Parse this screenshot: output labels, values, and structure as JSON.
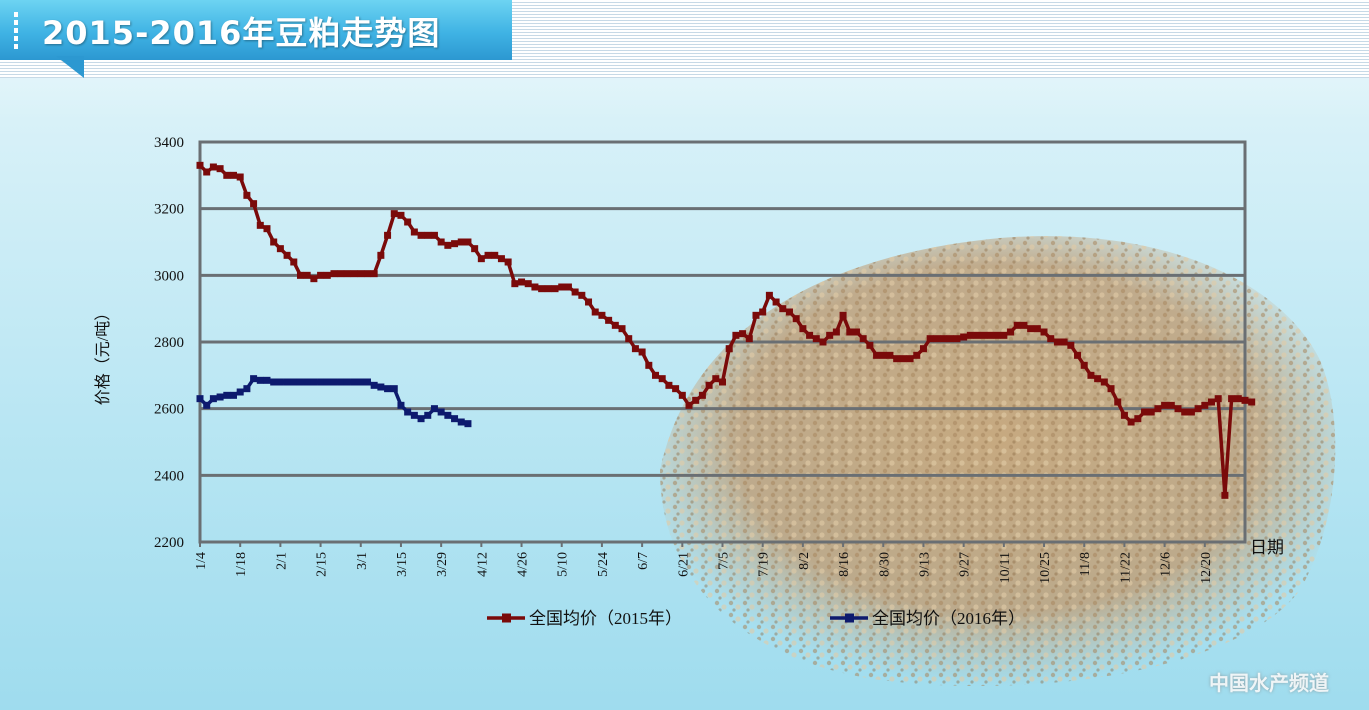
{
  "header": {
    "title": "2015-2016年豆粕走势图"
  },
  "watermark": {
    "text": "中国水产频道"
  },
  "chart_data": {
    "type": "line",
    "title": "2015-2016年豆粕走势图",
    "ylabel": "价格（元/吨）",
    "xlabel": "日期",
    "ylim": [
      2200,
      3400
    ],
    "yticks": [
      2200,
      2400,
      2600,
      2800,
      3000,
      3200,
      3400
    ],
    "x_ticks": [
      "1/4",
      "1/18",
      "2/1",
      "2/15",
      "3/1",
      "3/15",
      "3/29",
      "4/12",
      "4/26",
      "5/10",
      "5/24",
      "6/7",
      "6/21",
      "7/5",
      "7/19",
      "8/2",
      "8/16",
      "8/30",
      "9/13",
      "9/27",
      "10/11",
      "10/25",
      "11/8",
      "11/22",
      "12/6",
      "12/20"
    ],
    "grid": true,
    "legend_position": "bottom",
    "colors": {
      "2015": "#7a0a0a",
      "2016": "#0d1a6e"
    },
    "series": [
      {
        "name": "全国均价（2015年）",
        "color": "#7a0a0a",
        "points": [
          [
            0,
            3330
          ],
          [
            1,
            3310
          ],
          [
            2,
            3325
          ],
          [
            3,
            3320
          ],
          [
            4,
            3300
          ],
          [
            5,
            3300
          ],
          [
            6,
            3295
          ],
          [
            7,
            3240
          ],
          [
            8,
            3215
          ],
          [
            9,
            3150
          ],
          [
            10,
            3140
          ],
          [
            11,
            3100
          ],
          [
            12,
            3080
          ],
          [
            13,
            3060
          ],
          [
            14,
            3040
          ],
          [
            15,
            3000
          ],
          [
            16,
            3000
          ],
          [
            17,
            2990
          ],
          [
            18,
            3000
          ],
          [
            19,
            3000
          ],
          [
            20,
            3005
          ],
          [
            21,
            3005
          ],
          [
            22,
            3005
          ],
          [
            23,
            3005
          ],
          [
            24,
            3005
          ],
          [
            25,
            3005
          ],
          [
            26,
            3005
          ],
          [
            27,
            3060
          ],
          [
            28,
            3120
          ],
          [
            29,
            3185
          ],
          [
            30,
            3180
          ],
          [
            31,
            3160
          ],
          [
            32,
            3130
          ],
          [
            33,
            3120
          ],
          [
            34,
            3120
          ],
          [
            35,
            3120
          ],
          [
            36,
            3100
          ],
          [
            37,
            3090
          ],
          [
            38,
            3095
          ],
          [
            39,
            3100
          ],
          [
            40,
            3100
          ],
          [
            41,
            3080
          ],
          [
            42,
            3050
          ],
          [
            43,
            3060
          ],
          [
            44,
            3060
          ],
          [
            45,
            3050
          ],
          [
            46,
            3040
          ],
          [
            47,
            2975
          ],
          [
            48,
            2980
          ],
          [
            49,
            2975
          ],
          [
            50,
            2965
          ],
          [
            51,
            2960
          ],
          [
            52,
            2960
          ],
          [
            53,
            2960
          ],
          [
            54,
            2965
          ],
          [
            55,
            2965
          ],
          [
            56,
            2950
          ],
          [
            57,
            2940
          ],
          [
            58,
            2920
          ],
          [
            59,
            2890
          ],
          [
            60,
            2880
          ],
          [
            61,
            2865
          ],
          [
            62,
            2850
          ],
          [
            63,
            2840
          ],
          [
            64,
            2810
          ],
          [
            65,
            2780
          ],
          [
            66,
            2770
          ],
          [
            67,
            2730
          ],
          [
            68,
            2700
          ],
          [
            69,
            2690
          ],
          [
            70,
            2670
          ],
          [
            71,
            2660
          ],
          [
            72,
            2640
          ],
          [
            73,
            2610
          ],
          [
            74,
            2625
          ],
          [
            75,
            2640
          ],
          [
            76,
            2670
          ],
          [
            77,
            2690
          ],
          [
            78,
            2680
          ],
          [
            79,
            2780
          ],
          [
            80,
            2820
          ],
          [
            81,
            2825
          ],
          [
            82,
            2810
          ],
          [
            83,
            2880
          ],
          [
            84,
            2890
          ],
          [
            85,
            2940
          ],
          [
            86,
            2920
          ],
          [
            87,
            2900
          ],
          [
            88,
            2890
          ],
          [
            89,
            2870
          ],
          [
            90,
            2840
          ],
          [
            91,
            2820
          ],
          [
            92,
            2810
          ],
          [
            93,
            2800
          ],
          [
            94,
            2820
          ],
          [
            95,
            2830
          ],
          [
            96,
            2880
          ],
          [
            97,
            2830
          ],
          [
            98,
            2830
          ],
          [
            99,
            2810
          ],
          [
            100,
            2790
          ],
          [
            101,
            2760
          ],
          [
            102,
            2760
          ],
          [
            103,
            2760
          ],
          [
            104,
            2750
          ],
          [
            105,
            2750
          ],
          [
            106,
            2750
          ],
          [
            107,
            2760
          ],
          [
            108,
            2780
          ],
          [
            109,
            2810
          ],
          [
            110,
            2810
          ],
          [
            111,
            2810
          ],
          [
            112,
            2810
          ],
          [
            113,
            2810
          ],
          [
            114,
            2815
          ],
          [
            115,
            2820
          ],
          [
            116,
            2820
          ],
          [
            117,
            2820
          ],
          [
            118,
            2820
          ],
          [
            119,
            2820
          ],
          [
            120,
            2820
          ],
          [
            121,
            2830
          ],
          [
            122,
            2850
          ],
          [
            123,
            2850
          ],
          [
            124,
            2840
          ],
          [
            125,
            2840
          ],
          [
            126,
            2830
          ],
          [
            127,
            2810
          ],
          [
            128,
            2800
          ],
          [
            129,
            2800
          ],
          [
            130,
            2790
          ],
          [
            131,
            2760
          ],
          [
            132,
            2730
          ],
          [
            133,
            2700
          ],
          [
            134,
            2690
          ],
          [
            135,
            2680
          ],
          [
            136,
            2660
          ],
          [
            137,
            2620
          ],
          [
            138,
            2580
          ],
          [
            139,
            2560
          ],
          [
            140,
            2570
          ],
          [
            141,
            2590
          ],
          [
            142,
            2590
          ],
          [
            143,
            2600
          ],
          [
            144,
            2610
          ],
          [
            145,
            2610
          ],
          [
            146,
            2600
          ],
          [
            147,
            2590
          ],
          [
            148,
            2590
          ],
          [
            149,
            2600
          ],
          [
            150,
            2610
          ],
          [
            151,
            2620
          ],
          [
            152,
            2630
          ],
          [
            153,
            2340
          ],
          [
            154,
            2630
          ],
          [
            155,
            2630
          ],
          [
            156,
            2625
          ],
          [
            157,
            2620
          ]
        ]
      },
      {
        "name": "全国均价（2016年）",
        "color": "#0d1a6e",
        "points": [
          [
            0,
            2630
          ],
          [
            1,
            2610
          ],
          [
            2,
            2630
          ],
          [
            3,
            2635
          ],
          [
            4,
            2640
          ],
          [
            5,
            2640
          ],
          [
            6,
            2650
          ],
          [
            7,
            2660
          ],
          [
            8,
            2690
          ],
          [
            9,
            2685
          ],
          [
            10,
            2685
          ],
          [
            11,
            2680
          ],
          [
            12,
            2680
          ],
          [
            13,
            2680
          ],
          [
            14,
            2680
          ],
          [
            15,
            2680
          ],
          [
            16,
            2680
          ],
          [
            17,
            2680
          ],
          [
            18,
            2680
          ],
          [
            19,
            2680
          ],
          [
            20,
            2680
          ],
          [
            21,
            2680
          ],
          [
            22,
            2680
          ],
          [
            23,
            2680
          ],
          [
            24,
            2680
          ],
          [
            25,
            2680
          ],
          [
            26,
            2670
          ],
          [
            27,
            2665
          ],
          [
            28,
            2660
          ],
          [
            29,
            2660
          ],
          [
            30,
            2610
          ],
          [
            31,
            2590
          ],
          [
            32,
            2580
          ],
          [
            33,
            2570
          ],
          [
            34,
            2580
          ],
          [
            35,
            2600
          ],
          [
            36,
            2590
          ],
          [
            37,
            2580
          ],
          [
            38,
            2570
          ],
          [
            39,
            2560
          ],
          [
            40,
            2555
          ]
        ]
      }
    ]
  }
}
